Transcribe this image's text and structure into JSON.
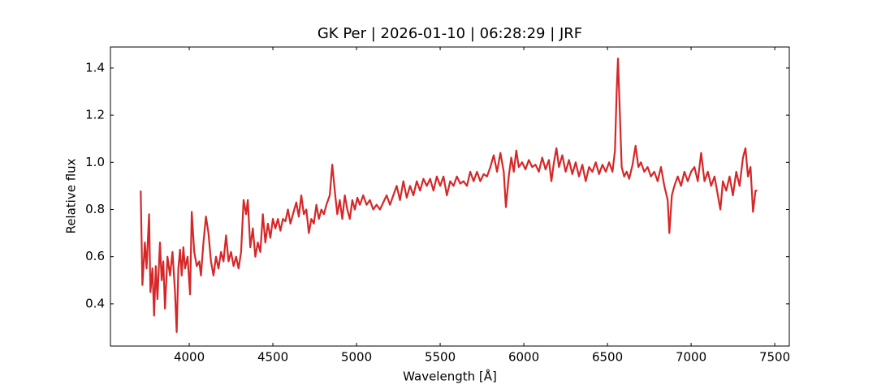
{
  "chart_data": {
    "type": "line",
    "title": "GK Per | 2026-01-10 | 06:28:29 | JRF",
    "x_label": "Wavelength [Å]",
    "y_label": "Relative flux",
    "xlim": [
      3529,
      7587
    ],
    "ylim": [
      0.221,
      1.489
    ],
    "xticks": [
      4000,
      4500,
      5000,
      5500,
      6000,
      6500,
      7000,
      7500
    ],
    "yticks": [
      0.4,
      0.6,
      0.8,
      {
        "value": 1,
        "label": "1.0"
      },
      1.2,
      1.4
    ],
    "tick_direction": "in",
    "x": [
      3710,
      3720,
      3735,
      3745,
      3760,
      3768,
      3780,
      3790,
      3800,
      3810,
      3825,
      3835,
      3845,
      3855,
      3870,
      3885,
      3900,
      3915,
      3925,
      3935,
      3945,
      3955,
      3965,
      3975,
      3990,
      4005,
      4015,
      4030,
      4045,
      4060,
      4070,
      4085,
      4100,
      4115,
      4130,
      4145,
      4160,
      4175,
      4190,
      4205,
      4220,
      4235,
      4250,
      4265,
      4280,
      4295,
      4310,
      4325,
      4340,
      4350,
      4365,
      4380,
      4395,
      4410,
      4425,
      4440,
      4455,
      4470,
      4485,
      4500,
      4515,
      4530,
      4545,
      4560,
      4575,
      4590,
      4605,
      4620,
      4640,
      4655,
      4670,
      4685,
      4700,
      4715,
      4730,
      4745,
      4760,
      4775,
      4790,
      4805,
      4820,
      4840,
      4855,
      4870,
      4885,
      4900,
      4915,
      4930,
      4945,
      4960,
      4975,
      4990,
      5005,
      5020,
      5040,
      5060,
      5080,
      5100,
      5120,
      5140,
      5160,
      5180,
      5200,
      5220,
      5240,
      5260,
      5280,
      5300,
      5320,
      5340,
      5360,
      5380,
      5400,
      5420,
      5440,
      5460,
      5480,
      5500,
      5520,
      5540,
      5560,
      5580,
      5600,
      5620,
      5640,
      5660,
      5680,
      5700,
      5720,
      5740,
      5760,
      5780,
      5800,
      5820,
      5840,
      5860,
      5880,
      5893,
      5910,
      5925,
      5940,
      5955,
      5970,
      5990,
      6010,
      6030,
      6050,
      6070,
      6090,
      6110,
      6130,
      6150,
      6165,
      6180,
      6195,
      6210,
      6230,
      6250,
      6270,
      6290,
      6310,
      6330,
      6350,
      6370,
      6390,
      6410,
      6430,
      6450,
      6470,
      6490,
      6510,
      6530,
      6545,
      6555,
      6563,
      6572,
      6585,
      6600,
      6615,
      6630,
      6650,
      6668,
      6685,
      6700,
      6720,
      6740,
      6760,
      6780,
      6800,
      6820,
      6840,
      6860,
      6870,
      6885,
      6900,
      6920,
      6940,
      6960,
      6980,
      7000,
      7020,
      7040,
      7060,
      7080,
      7100,
      7120,
      7140,
      7160,
      7175,
      7190,
      7210,
      7230,
      7250,
      7270,
      7290,
      7310,
      7325,
      7340,
      7355,
      7370,
      7385,
      7395
    ],
    "series": [
      {
        "color": "#d62728",
        "values": [
          0.88,
          0.48,
          0.66,
          0.55,
          0.78,
          0.45,
          0.55,
          0.35,
          0.56,
          0.42,
          0.66,
          0.5,
          0.58,
          0.38,
          0.6,
          0.52,
          0.62,
          0.45,
          0.28,
          0.55,
          0.63,
          0.52,
          0.64,
          0.55,
          0.6,
          0.44,
          0.79,
          0.62,
          0.56,
          0.58,
          0.52,
          0.66,
          0.77,
          0.7,
          0.58,
          0.52,
          0.6,
          0.55,
          0.62,
          0.58,
          0.69,
          0.58,
          0.62,
          0.56,
          0.6,
          0.55,
          0.62,
          0.84,
          0.78,
          0.84,
          0.64,
          0.72,
          0.6,
          0.66,
          0.62,
          0.78,
          0.66,
          0.74,
          0.68,
          0.76,
          0.72,
          0.76,
          0.71,
          0.76,
          0.75,
          0.8,
          0.74,
          0.78,
          0.83,
          0.77,
          0.86,
          0.78,
          0.8,
          0.7,
          0.76,
          0.74,
          0.82,
          0.76,
          0.8,
          0.78,
          0.82,
          0.86,
          0.99,
          0.88,
          0.78,
          0.84,
          0.76,
          0.86,
          0.8,
          0.76,
          0.84,
          0.8,
          0.85,
          0.82,
          0.86,
          0.82,
          0.84,
          0.8,
          0.82,
          0.8,
          0.83,
          0.86,
          0.82,
          0.86,
          0.9,
          0.84,
          0.92,
          0.85,
          0.9,
          0.86,
          0.92,
          0.88,
          0.93,
          0.9,
          0.93,
          0.88,
          0.94,
          0.9,
          0.94,
          0.86,
          0.92,
          0.9,
          0.94,
          0.91,
          0.92,
          0.9,
          0.96,
          0.92,
          0.96,
          0.92,
          0.95,
          0.94,
          0.98,
          1.03,
          0.96,
          1.04,
          0.96,
          0.81,
          0.94,
          1.02,
          0.96,
          1.05,
          0.98,
          1.0,
          0.97,
          1.01,
          0.98,
          0.99,
          0.96,
          1.02,
          0.97,
          1.01,
          0.92,
          1.0,
          1.06,
          0.98,
          1.03,
          0.96,
          1.01,
          0.95,
          1.0,
          0.94,
          0.99,
          0.92,
          0.98,
          0.96,
          1.0,
          0.95,
          0.99,
          0.96,
          1.0,
          0.96,
          1.05,
          1.3,
          1.44,
          1.25,
          0.98,
          0.94,
          0.96,
          0.93,
          0.99,
          1.07,
          0.98,
          1.0,
          0.96,
          0.98,
          0.94,
          0.96,
          0.92,
          0.98,
          0.9,
          0.84,
          0.7,
          0.86,
          0.9,
          0.94,
          0.9,
          0.96,
          0.92,
          0.96,
          0.98,
          0.92,
          1.04,
          0.92,
          0.96,
          0.9,
          0.94,
          0.86,
          0.8,
          0.92,
          0.88,
          0.94,
          0.86,
          0.96,
          0.9,
          1.02,
          1.06,
          0.94,
          0.98,
          0.79,
          0.88,
          0.88
        ]
      }
    ]
  }
}
